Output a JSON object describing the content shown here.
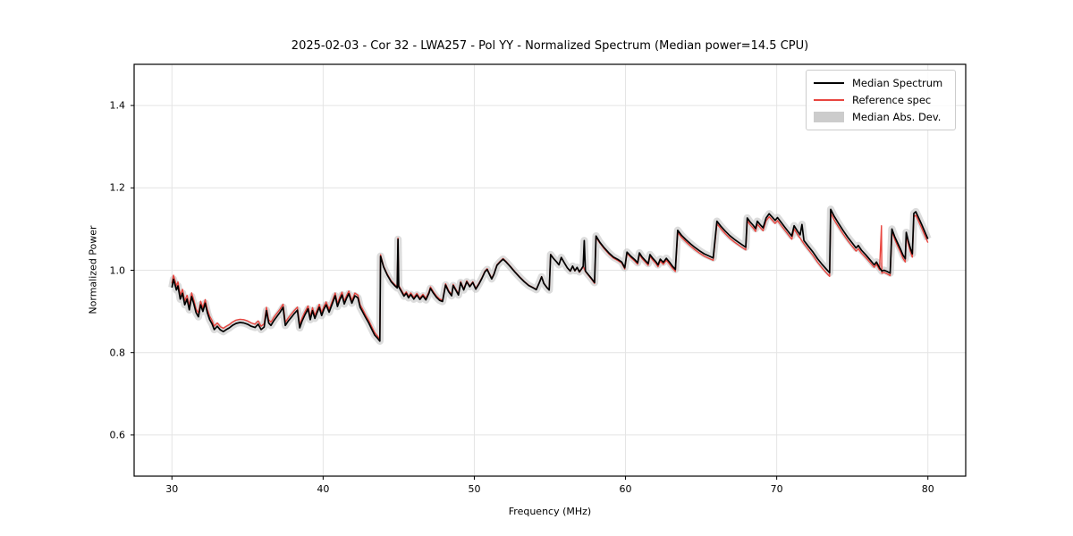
{
  "title": "2025-02-03 - Cor 32 - LWA257 - Pol YY - Normalized Spectrum (Median power=14.5 CPU)",
  "axes": {
    "xlabel": "Frequency (MHz)",
    "ylabel": "Normalized Power"
  },
  "legend": {
    "position": "upper right",
    "items": [
      {
        "label": "Median Spectrum",
        "type": "line",
        "color": "#000000"
      },
      {
        "label": "Reference spec",
        "type": "line",
        "color": "#e8453f"
      },
      {
        "label": "Median Abs. Dev.",
        "type": "patch",
        "color": "#cccccc"
      }
    ]
  },
  "colors": {
    "median_line": "#000000",
    "reference_line": "#e8453f",
    "mad_band": "#bfbfbf",
    "grid": "#e4e4e4",
    "frame": "#000000"
  },
  "chart_data": {
    "type": "line",
    "title": "2025-02-03 - Cor 32 - LWA257 - Pol YY - Normalized Spectrum (Median power=14.5 CPU)",
    "xlabel": "Frequency (MHz)",
    "ylabel": "Normalized Power",
    "xlim": [
      27.5,
      82.5
    ],
    "ylim": [
      0.5,
      1.5
    ],
    "xticks": [
      30,
      40,
      50,
      60,
      70,
      80
    ],
    "yticks": [
      0.6,
      0.8,
      1.0,
      1.2,
      1.4
    ],
    "grid": true,
    "legend_position": "upper right",
    "series": [
      {
        "name": "Median Spectrum",
        "style": "line",
        "color": "#000000",
        "points": [
          [
            30.0,
            0.958
          ],
          [
            30.1,
            0.978
          ],
          [
            30.2,
            0.965
          ],
          [
            30.3,
            0.952
          ],
          [
            30.4,
            0.962
          ],
          [
            30.55,
            0.93
          ],
          [
            30.7,
            0.944
          ],
          [
            30.85,
            0.916
          ],
          [
            31.0,
            0.93
          ],
          [
            31.15,
            0.904
          ],
          [
            31.3,
            0.936
          ],
          [
            31.45,
            0.918
          ],
          [
            31.6,
            0.897
          ],
          [
            31.75,
            0.887
          ],
          [
            31.9,
            0.916
          ],
          [
            32.05,
            0.9
          ],
          [
            32.2,
            0.92
          ],
          [
            32.35,
            0.896
          ],
          [
            32.5,
            0.88
          ],
          [
            32.65,
            0.87
          ],
          [
            32.8,
            0.856
          ],
          [
            33.0,
            0.864
          ],
          [
            33.2,
            0.855
          ],
          [
            33.4,
            0.851
          ],
          [
            33.6,
            0.856
          ],
          [
            33.8,
            0.86
          ],
          [
            34.0,
            0.866
          ],
          [
            34.25,
            0.871
          ],
          [
            34.5,
            0.873
          ],
          [
            34.75,
            0.872
          ],
          [
            35.0,
            0.869
          ],
          [
            35.25,
            0.864
          ],
          [
            35.5,
            0.861
          ],
          [
            35.7,
            0.869
          ],
          [
            35.9,
            0.856
          ],
          [
            36.1,
            0.862
          ],
          [
            36.25,
            0.902
          ],
          [
            36.4,
            0.872
          ],
          [
            36.55,
            0.866
          ],
          [
            36.75,
            0.878
          ],
          [
            36.95,
            0.888
          ],
          [
            37.15,
            0.898
          ],
          [
            37.35,
            0.91
          ],
          [
            37.5,
            0.866
          ],
          [
            37.7,
            0.877
          ],
          [
            37.9,
            0.886
          ],
          [
            38.1,
            0.895
          ],
          [
            38.3,
            0.903
          ],
          [
            38.45,
            0.86
          ],
          [
            38.6,
            0.876
          ],
          [
            38.8,
            0.892
          ],
          [
            39.0,
            0.906
          ],
          [
            39.15,
            0.88
          ],
          [
            39.3,
            0.902
          ],
          [
            39.45,
            0.883
          ],
          [
            39.6,
            0.897
          ],
          [
            39.75,
            0.91
          ],
          [
            39.9,
            0.89
          ],
          [
            40.05,
            0.905
          ],
          [
            40.2,
            0.916
          ],
          [
            40.4,
            0.898
          ],
          [
            40.6,
            0.918
          ],
          [
            40.8,
            0.938
          ],
          [
            40.95,
            0.912
          ],
          [
            41.1,
            0.928
          ],
          [
            41.25,
            0.94
          ],
          [
            41.4,
            0.918
          ],
          [
            41.55,
            0.932
          ],
          [
            41.7,
            0.943
          ],
          [
            41.9,
            0.92
          ],
          [
            42.1,
            0.938
          ],
          [
            42.3,
            0.933
          ],
          [
            42.45,
            0.91
          ],
          [
            42.6,
            0.9
          ],
          [
            42.8,
            0.886
          ],
          [
            43.0,
            0.873
          ],
          [
            43.2,
            0.858
          ],
          [
            43.4,
            0.843
          ],
          [
            43.6,
            0.835
          ],
          [
            43.75,
            0.828
          ],
          [
            43.8,
            1.034
          ],
          [
            44.0,
            1.008
          ],
          [
            44.25,
            0.988
          ],
          [
            44.5,
            0.972
          ],
          [
            44.75,
            0.962
          ],
          [
            44.9,
            0.957
          ],
          [
            44.95,
            1.075
          ],
          [
            45.0,
            0.96
          ],
          [
            45.2,
            0.947
          ],
          [
            45.35,
            0.937
          ],
          [
            45.5,
            0.944
          ],
          [
            45.65,
            0.933
          ],
          [
            45.8,
            0.941
          ],
          [
            46.0,
            0.93
          ],
          [
            46.2,
            0.94
          ],
          [
            46.4,
            0.929
          ],
          [
            46.6,
            0.938
          ],
          [
            46.8,
            0.928
          ],
          [
            47.0,
            0.944
          ],
          [
            47.1,
            0.956
          ],
          [
            47.3,
            0.944
          ],
          [
            47.5,
            0.934
          ],
          [
            47.7,
            0.927
          ],
          [
            47.9,
            0.924
          ],
          [
            48.1,
            0.964
          ],
          [
            48.3,
            0.948
          ],
          [
            48.5,
            0.938
          ],
          [
            48.6,
            0.963
          ],
          [
            48.8,
            0.95
          ],
          [
            48.95,
            0.94
          ],
          [
            49.1,
            0.97
          ],
          [
            49.3,
            0.952
          ],
          [
            49.5,
            0.972
          ],
          [
            49.7,
            0.96
          ],
          [
            49.9,
            0.97
          ],
          [
            50.1,
            0.954
          ],
          [
            50.3,
            0.966
          ],
          [
            50.5,
            0.98
          ],
          [
            50.7,
            0.996
          ],
          [
            50.85,
            1.002
          ],
          [
            51.0,
            0.99
          ],
          [
            51.15,
            0.979
          ],
          [
            51.3,
            0.99
          ],
          [
            51.5,
            1.012
          ],
          [
            51.7,
            1.02
          ],
          [
            51.9,
            1.027
          ],
          [
            52.1,
            1.02
          ],
          [
            52.4,
            1.008
          ],
          [
            52.7,
            0.995
          ],
          [
            53.0,
            0.983
          ],
          [
            53.3,
            0.972
          ],
          [
            53.6,
            0.963
          ],
          [
            53.9,
            0.957
          ],
          [
            54.1,
            0.953
          ],
          [
            54.3,
            0.97
          ],
          [
            54.45,
            0.984
          ],
          [
            54.6,
            0.968
          ],
          [
            54.8,
            0.958
          ],
          [
            54.95,
            0.952
          ],
          [
            55.05,
            1.038
          ],
          [
            55.25,
            1.028
          ],
          [
            55.45,
            1.02
          ],
          [
            55.6,
            1.013
          ],
          [
            55.75,
            1.031
          ],
          [
            55.95,
            1.018
          ],
          [
            56.15,
            1.006
          ],
          [
            56.35,
            0.998
          ],
          [
            56.5,
            1.01
          ],
          [
            56.65,
            0.999
          ],
          [
            56.8,
            1.007
          ],
          [
            56.95,
            0.996
          ],
          [
            57.1,
            1.004
          ],
          [
            57.2,
            1.01
          ],
          [
            57.27,
            1.072
          ],
          [
            57.35,
            0.998
          ],
          [
            57.55,
            0.989
          ],
          [
            57.75,
            0.98
          ],
          [
            57.95,
            0.97
          ],
          [
            58.05,
            1.083
          ],
          [
            58.3,
            1.068
          ],
          [
            58.6,
            1.054
          ],
          [
            58.9,
            1.042
          ],
          [
            59.2,
            1.032
          ],
          [
            59.5,
            1.026
          ],
          [
            59.75,
            1.02
          ],
          [
            59.95,
            1.006
          ],
          [
            60.1,
            1.044
          ],
          [
            60.35,
            1.034
          ],
          [
            60.6,
            1.026
          ],
          [
            60.8,
            1.018
          ],
          [
            60.92,
            1.042
          ],
          [
            61.1,
            1.032
          ],
          [
            61.3,
            1.024
          ],
          [
            61.5,
            1.016
          ],
          [
            61.62,
            1.038
          ],
          [
            61.8,
            1.029
          ],
          [
            62.0,
            1.021
          ],
          [
            62.15,
            1.013
          ],
          [
            62.3,
            1.027
          ],
          [
            62.5,
            1.019
          ],
          [
            62.7,
            1.029
          ],
          [
            62.9,
            1.02
          ],
          [
            63.1,
            1.01
          ],
          [
            63.3,
            1.002
          ],
          [
            63.45,
            1.097
          ],
          [
            63.7,
            1.085
          ],
          [
            64.0,
            1.074
          ],
          [
            64.3,
            1.064
          ],
          [
            64.6,
            1.055
          ],
          [
            64.9,
            1.047
          ],
          [
            65.2,
            1.04
          ],
          [
            65.5,
            1.035
          ],
          [
            65.8,
            1.03
          ],
          [
            66.05,
            1.119
          ],
          [
            66.3,
            1.107
          ],
          [
            66.6,
            1.095
          ],
          [
            66.9,
            1.084
          ],
          [
            67.2,
            1.075
          ],
          [
            67.5,
            1.067
          ],
          [
            67.75,
            1.061
          ],
          [
            67.95,
            1.056
          ],
          [
            68.05,
            1.127
          ],
          [
            68.25,
            1.117
          ],
          [
            68.45,
            1.109
          ],
          [
            68.6,
            1.101
          ],
          [
            68.72,
            1.119
          ],
          [
            68.9,
            1.111
          ],
          [
            69.1,
            1.103
          ],
          [
            69.3,
            1.127
          ],
          [
            69.5,
            1.137
          ],
          [
            69.7,
            1.129
          ],
          [
            69.9,
            1.121
          ],
          [
            70.05,
            1.128
          ],
          [
            70.3,
            1.116
          ],
          [
            70.55,
            1.104
          ],
          [
            70.8,
            1.092
          ],
          [
            71.0,
            1.083
          ],
          [
            71.15,
            1.108
          ],
          [
            71.35,
            1.096
          ],
          [
            71.55,
            1.086
          ],
          [
            71.67,
            1.111
          ],
          [
            71.8,
            1.072
          ],
          [
            72.1,
            1.058
          ],
          [
            72.4,
            1.044
          ],
          [
            72.7,
            1.028
          ],
          [
            73.0,
            1.014
          ],
          [
            73.3,
            1.002
          ],
          [
            73.5,
            0.994
          ],
          [
            73.57,
            1.148
          ],
          [
            73.8,
            1.131
          ],
          [
            74.1,
            1.113
          ],
          [
            74.4,
            1.096
          ],
          [
            74.7,
            1.08
          ],
          [
            75.0,
            1.066
          ],
          [
            75.25,
            1.054
          ],
          [
            75.4,
            1.06
          ],
          [
            75.6,
            1.049
          ],
          [
            75.9,
            1.037
          ],
          [
            76.2,
            1.024
          ],
          [
            76.45,
            1.013
          ],
          [
            76.6,
            1.02
          ],
          [
            76.8,
            1.006
          ],
          [
            76.95,
            0.998
          ],
          [
            77.1,
            1.0
          ],
          [
            77.3,
            0.997
          ],
          [
            77.5,
            0.993
          ],
          [
            77.62,
            1.1
          ],
          [
            77.8,
            1.082
          ],
          [
            78.0,
            1.066
          ],
          [
            78.2,
            1.05
          ],
          [
            78.35,
            1.037
          ],
          [
            78.5,
            1.028
          ],
          [
            78.57,
            1.092
          ],
          [
            78.7,
            1.072
          ],
          [
            78.85,
            1.052
          ],
          [
            78.97,
            1.04
          ],
          [
            79.07,
            1.138
          ],
          [
            79.2,
            1.142
          ],
          [
            79.4,
            1.126
          ],
          [
            79.6,
            1.11
          ],
          [
            79.8,
            1.093
          ],
          [
            80.0,
            1.076
          ]
        ]
      },
      {
        "name": "Reference spec",
        "style": "line",
        "color": "#e8453f",
        "derived_from": "Median Spectrum",
        "delta_control_points": [
          [
            30,
            0.01
          ],
          [
            33,
            0.008
          ],
          [
            36,
            0.008
          ],
          [
            40,
            0.007
          ],
          [
            43.5,
            0.006
          ],
          [
            44,
            0.002
          ],
          [
            46,
            0.004
          ],
          [
            50,
            0.002
          ],
          [
            53,
            0.001
          ],
          [
            56,
            0.0
          ],
          [
            58,
            -0.002
          ],
          [
            60,
            -0.003
          ],
          [
            63,
            -0.005
          ],
          [
            66,
            -0.006
          ],
          [
            69,
            -0.007
          ],
          [
            72,
            -0.008
          ],
          [
            73.5,
            -0.009
          ],
          [
            75,
            -0.008
          ],
          [
            77,
            -0.005
          ],
          [
            78.5,
            -0.008
          ],
          [
            80,
            -0.009
          ]
        ],
        "exclude_median_spike_freqs": [
          57.27,
          71.67
        ],
        "extra_spikes": [
          [
            76.93,
            1.108
          ]
        ]
      },
      {
        "name": "Median Abs. Dev.",
        "style": "band",
        "around": "Median Spectrum",
        "half_width": 0.009,
        "color": "#bfbfbf",
        "opacity": 0.55
      }
    ]
  }
}
